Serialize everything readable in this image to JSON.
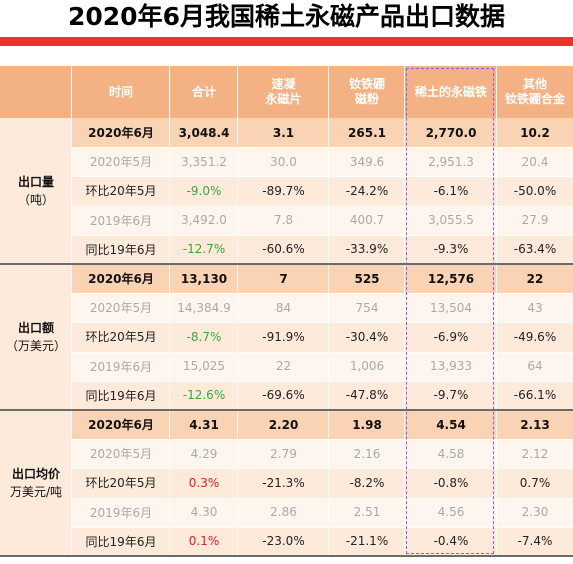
{
  "title": "2020年6月我国稀土永磁产品出口数据",
  "colors": {
    "accent_red": "#ea3323",
    "header_orange": "#f4b183",
    "current_row": "#f9d3b4",
    "band_light": "#fdeadb",
    "band_pale": "#fef5ee",
    "green": "#3aaa35",
    "red": "#e02020",
    "highlight_outline": "#8a5cf0"
  },
  "header": {
    "time": "时间",
    "total": "合计",
    "quench_l1": "速凝",
    "quench_l2": "永磁片",
    "ndfeb_l1": "钕铁硼",
    "ndfeb_l2": "磁粉",
    "magnet": "稀土的永磁铁",
    "other_l1": "其他",
    "other_l2": "钕铁硼合金"
  },
  "groups": [
    {
      "label": "出口量",
      "unit": "（吨）",
      "rows": [
        {
          "time": "2020年6月",
          "total": "3,048.4",
          "c2": "3.1",
          "c3": "265.1",
          "c4": "2,770.0",
          "c5": "10.2"
        },
        {
          "time": "2020年5月",
          "total": "3,351.2",
          "c2": "30.0",
          "c3": "349.6",
          "c4": "2,951.3",
          "c5": "20.4"
        },
        {
          "time": "环比20年5月",
          "total": "-9.0%",
          "c2": "-89.7%",
          "c3": "-24.2%",
          "c4": "-6.1%",
          "c5": "-50.0%"
        },
        {
          "time": "2019年6月",
          "total": "3,492.0",
          "c2": "7.8",
          "c3": "400.7",
          "c4": "3,055.5",
          "c5": "27.9"
        },
        {
          "time": "同比19年6月",
          "total": "-12.7%",
          "c2": "-60.6%",
          "c3": "-33.9%",
          "c4": "-9.3%",
          "c5": "-63.4%"
        }
      ]
    },
    {
      "label": "出口额",
      "unit": "（万美元）",
      "rows": [
        {
          "time": "2020年6月",
          "total": "13,130",
          "c2": "7",
          "c3": "525",
          "c4": "12,576",
          "c5": "22"
        },
        {
          "time": "2020年5月",
          "total": "14,384.9",
          "c2": "84",
          "c3": "754",
          "c4": "13,504",
          "c5": "43"
        },
        {
          "time": "环比20年5月",
          "total": "-8.7%",
          "c2": "-91.9%",
          "c3": "-30.4%",
          "c4": "-6.9%",
          "c5": "-49.6%"
        },
        {
          "time": "2019年6月",
          "total": "15,025",
          "c2": "22",
          "c3": "1,006",
          "c4": "13,933",
          "c5": "64"
        },
        {
          "time": "同比19年6月",
          "total": "-12.6%",
          "c2": "-69.6%",
          "c3": "-47.8%",
          "c4": "-9.7%",
          "c5": "-66.1%"
        }
      ]
    },
    {
      "label": "出口均价",
      "unit": "万美元/吨",
      "rows": [
        {
          "time": "2020年6月",
          "total": "4.31",
          "c2": "2.20",
          "c3": "1.98",
          "c4": "4.54",
          "c5": "2.13"
        },
        {
          "time": "2020年5月",
          "total": "4.29",
          "c2": "2.79",
          "c3": "2.16",
          "c4": "4.58",
          "c5": "2.12"
        },
        {
          "time": "环比20年5月",
          "total": "0.3%",
          "c2": "-21.3%",
          "c3": "-8.2%",
          "c4": "-0.8%",
          "c5": "0.7%"
        },
        {
          "time": "2019年6月",
          "total": "4.30",
          "c2": "2.86",
          "c3": "2.51",
          "c4": "4.56",
          "c5": "2.30"
        },
        {
          "time": "同比19年6月",
          "total": "0.1%",
          "c2": "-23.0%",
          "c3": "-21.1%",
          "c4": "-0.4%",
          "c5": "-7.4%"
        }
      ]
    }
  ]
}
